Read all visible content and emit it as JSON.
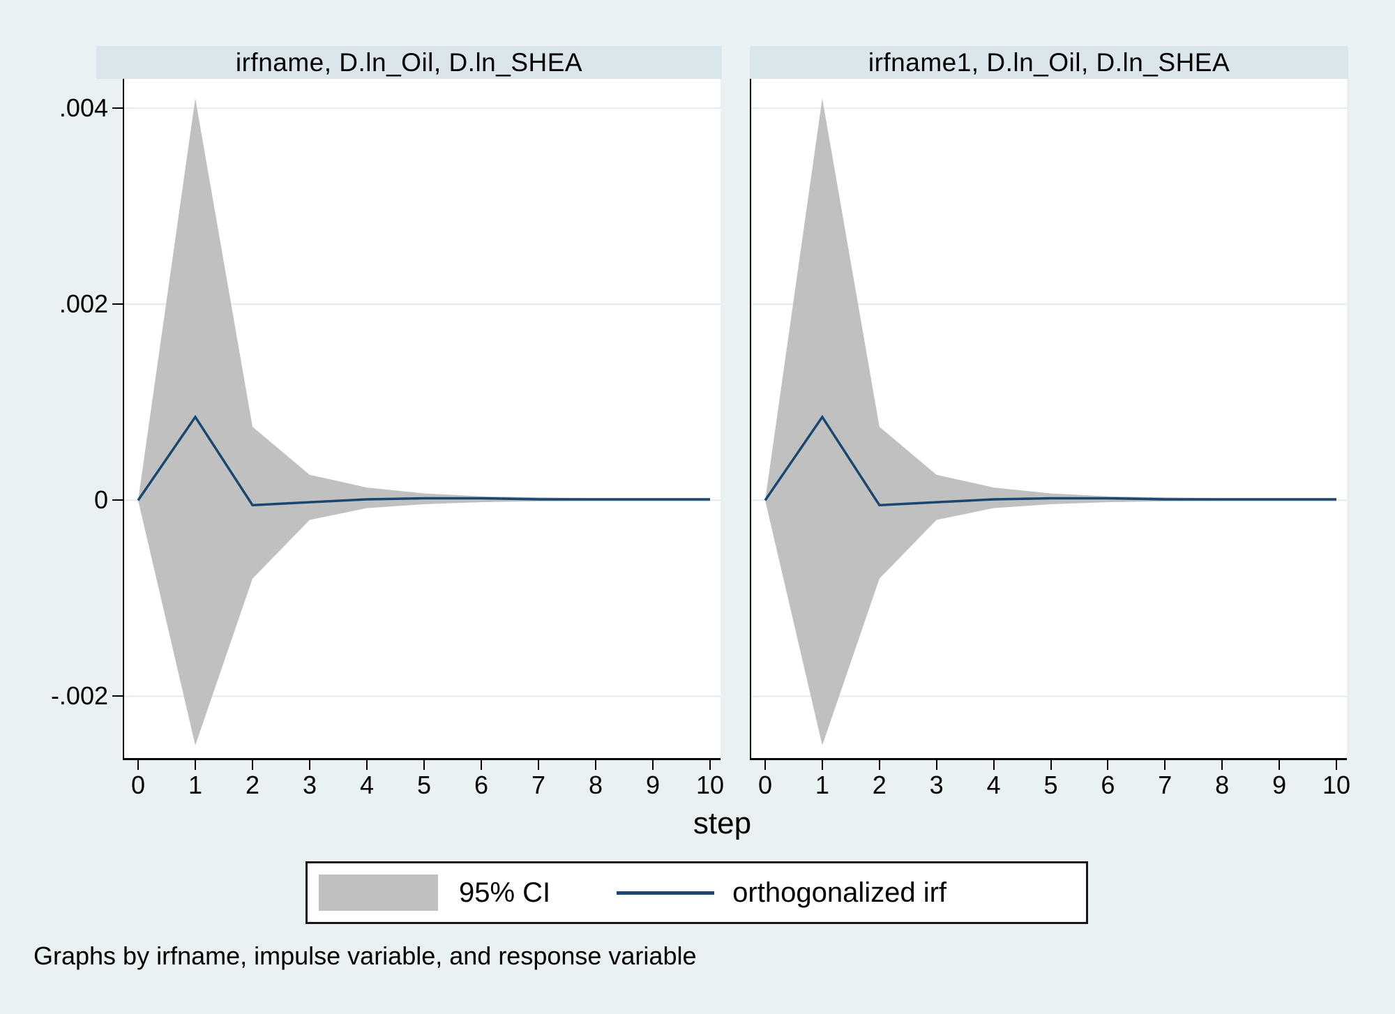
{
  "figure": {
    "background": "#EAF1F3",
    "panel_header_bg": "#DAE6EB",
    "plot_bg": "#FFFFFF",
    "grid_color": "#E4EBEE",
    "axis_color": "#000000",
    "ci_color": "#C0C0C0",
    "irf_color": "#1A476F",
    "xlabel": "step",
    "caption": "Graphs by irfname, impulse variable, and response variable",
    "legend": [
      {
        "type": "area",
        "swatch_color": "#C0C0C0",
        "label": "95% CI"
      },
      {
        "type": "line",
        "swatch_color": "#1A476F",
        "label": "orthogonalized irf"
      }
    ]
  },
  "chart_data": [
    {
      "type": "area",
      "title": "irfname, D.ln_Oil, D.ln_SHEA",
      "xlabel": "step",
      "x": [
        0,
        1,
        2,
        3,
        4,
        5,
        6,
        7,
        8,
        9,
        10
      ],
      "series": [
        {
          "name": "95% CI upper",
          "values": [
            0,
            0.0041,
            0.00075,
            0.00026,
            0.00013,
            7e-05,
            4e-05,
            3e-05,
            2e-05,
            2e-05,
            2e-05
          ]
        },
        {
          "name": "95% CI lower",
          "values": [
            0,
            -0.0025,
            -0.0008,
            -0.0002,
            -8e-05,
            -4e-05,
            -2e-05,
            -1e-05,
            -1e-05,
            -1e-05,
            -1e-05
          ]
        },
        {
          "name": "orthogonalized irf",
          "values": [
            0,
            0.00085,
            -5e-05,
            -2e-05,
            1e-05,
            2e-05,
            2e-05,
            1e-05,
            1e-05,
            1e-05,
            1e-05
          ]
        }
      ],
      "ylim": [
        -0.00263,
        0.0043
      ],
      "yticks": [
        0.004,
        0.002,
        0,
        -0.002
      ],
      "ytick_labels": [
        ".004",
        ".002",
        "0",
        "-.002"
      ],
      "xticks": [
        "0",
        "1",
        "2",
        "3",
        "4",
        "5",
        "6",
        "7",
        "8",
        "9",
        "10"
      ],
      "grid": true,
      "legend_position": "bottom"
    },
    {
      "type": "area",
      "title": "irfname1, D.ln_Oil, D.ln_SHEA",
      "xlabel": "step",
      "x": [
        0,
        1,
        2,
        3,
        4,
        5,
        6,
        7,
        8,
        9,
        10
      ],
      "series": [
        {
          "name": "95% CI upper",
          "values": [
            0,
            0.0041,
            0.00075,
            0.00026,
            0.00013,
            7e-05,
            4e-05,
            3e-05,
            2e-05,
            2e-05,
            2e-05
          ]
        },
        {
          "name": "95% CI lower",
          "values": [
            0,
            -0.0025,
            -0.0008,
            -0.0002,
            -8e-05,
            -4e-05,
            -2e-05,
            -1e-05,
            -1e-05,
            -1e-05,
            -1e-05
          ]
        },
        {
          "name": "orthogonalized irf",
          "values": [
            0,
            0.00085,
            -5e-05,
            -2e-05,
            1e-05,
            2e-05,
            2e-05,
            1e-05,
            1e-05,
            1e-05,
            1e-05
          ]
        }
      ],
      "ylim": [
        -0.00263,
        0.0043
      ],
      "yticks": [
        0.004,
        0.002,
        0,
        -0.002
      ],
      "ytick_labels": [
        ".004",
        ".002",
        "0",
        "-.002"
      ],
      "xticks": [
        "0",
        "1",
        "2",
        "3",
        "4",
        "5",
        "6",
        "7",
        "8",
        "9",
        "10"
      ],
      "grid": true,
      "legend_position": "bottom"
    }
  ]
}
